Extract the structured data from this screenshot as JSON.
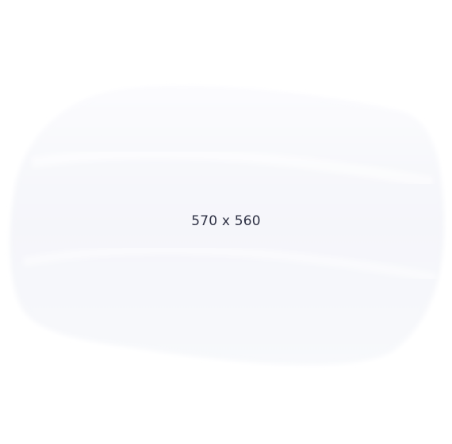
{
  "placeholder": {
    "label": "570 x 560",
    "text_color": "#2f3245",
    "shape_color": "#f6f7fb",
    "background_color": "#ffffff"
  }
}
